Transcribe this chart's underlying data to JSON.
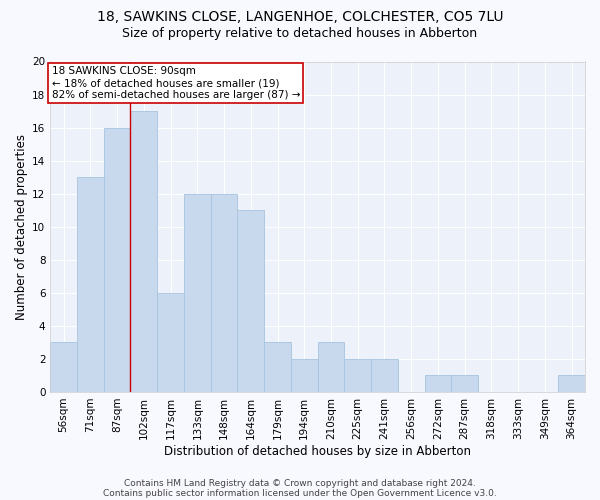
{
  "title_line1": "18, SAWKINS CLOSE, LANGENHOE, COLCHESTER, CO5 7LU",
  "title_line2": "Size of property relative to detached houses in Abberton",
  "xlabel": "Distribution of detached houses by size in Abberton",
  "ylabel": "Number of detached properties",
  "bar_color": "#c8d9ee",
  "bar_edgecolor": "#a8c4e0",
  "categories": [
    "56sqm",
    "71sqm",
    "87sqm",
    "102sqm",
    "117sqm",
    "133sqm",
    "148sqm",
    "164sqm",
    "179sqm",
    "194sqm",
    "210sqm",
    "225sqm",
    "241sqm",
    "256sqm",
    "272sqm",
    "287sqm",
    "318sqm",
    "333sqm",
    "349sqm",
    "364sqm"
  ],
  "values": [
    3,
    13,
    16,
    17,
    6,
    12,
    12,
    11,
    3,
    2,
    3,
    2,
    2,
    0,
    1,
    1,
    0,
    0,
    0,
    1
  ],
  "ylim": [
    0,
    20
  ],
  "yticks": [
    0,
    2,
    4,
    6,
    8,
    10,
    12,
    14,
    16,
    18,
    20
  ],
  "annotation_text_line1": "18 SAWKINS CLOSE: 90sqm",
  "annotation_text_line2": "← 18% of detached houses are smaller (19)",
  "annotation_text_line3": "82% of semi-detached houses are larger (87) →",
  "vline_x": 2.5,
  "vline_color": "#cc0000",
  "footer_line1": "Contains HM Land Registry data © Crown copyright and database right 2024.",
  "footer_line2": "Contains public sector information licensed under the Open Government Licence v3.0.",
  "fig_facecolor": "#f8f8ff",
  "ax_facecolor": "#edf2fa",
  "grid_color": "#ffffff",
  "title_fontsize": 10,
  "subtitle_fontsize": 9,
  "axis_label_fontsize": 8.5,
  "tick_fontsize": 7.5,
  "annotation_fontsize": 7.5,
  "footer_fontsize": 6.5
}
